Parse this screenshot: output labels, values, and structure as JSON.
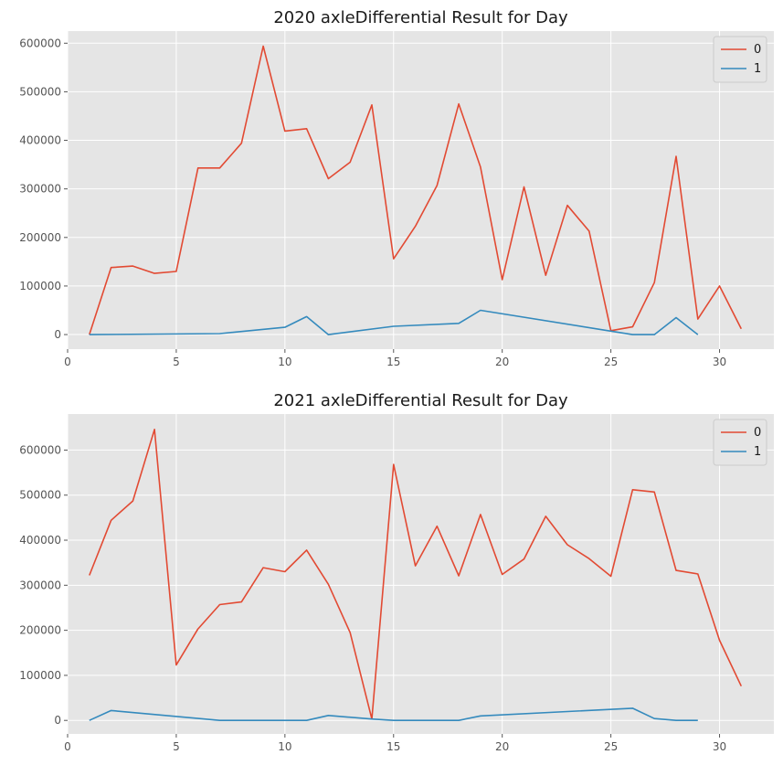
{
  "chart_data": [
    {
      "type": "line",
      "title": "2020 axleDifferential Result for Day",
      "xlabel": "",
      "ylabel": "",
      "xlim": [
        0,
        32.5
      ],
      "ylim": [
        -30000,
        625000
      ],
      "xticks": [
        0,
        5,
        10,
        15,
        20,
        25,
        30
      ],
      "yticks": [
        0,
        100000,
        200000,
        300000,
        400000,
        500000,
        600000
      ],
      "grid": true,
      "legend": "top-right",
      "series": [
        {
          "name": "0",
          "color": "#e24a33",
          "x": [
            1,
            2,
            3,
            4,
            5,
            6,
            7,
            8,
            9,
            10,
            11,
            12,
            13,
            14,
            15,
            16,
            17,
            18,
            19,
            20,
            21,
            22,
            23,
            24,
            25,
            26,
            27,
            28,
            29,
            30,
            31
          ],
          "y": [
            0,
            138000,
            141000,
            126000,
            130000,
            343000,
            343000,
            394000,
            594000,
            419000,
            424000,
            321000,
            355000,
            473000,
            156000,
            223000,
            307000,
            475000,
            345000,
            113000,
            304000,
            122000,
            266000,
            213000,
            8000,
            16000,
            107000,
            367000,
            32000,
            100000,
            12000
          ]
        },
        {
          "name": "1",
          "color": "#348abd",
          "x": [
            1,
            7,
            10,
            11,
            12,
            15,
            18,
            19,
            25,
            26,
            27,
            28,
            29
          ],
          "y": [
            0,
            2000,
            15000,
            37000,
            0,
            17000,
            23000,
            50000,
            7000,
            0,
            0,
            35000,
            0
          ]
        }
      ]
    },
    {
      "type": "line",
      "title": "2021 axleDifferential Result for Day",
      "xlabel": "",
      "ylabel": "",
      "xlim": [
        0,
        32.5
      ],
      "ylim": [
        -30000,
        680000
      ],
      "xticks": [
        0,
        5,
        10,
        15,
        20,
        25,
        30
      ],
      "yticks": [
        0,
        100000,
        200000,
        300000,
        400000,
        500000,
        600000
      ],
      "grid": true,
      "legend": "top-right",
      "series": [
        {
          "name": "0",
          "color": "#e24a33",
          "x": [
            1,
            2,
            3,
            4,
            5,
            6,
            7,
            8,
            9,
            10,
            11,
            12,
            13,
            14,
            15,
            16,
            17,
            18,
            19,
            20,
            21,
            22,
            23,
            24,
            25,
            26,
            27,
            28,
            29,
            30,
            31
          ],
          "y": [
            322000,
            444000,
            487000,
            646000,
            123000,
            203000,
            257000,
            263000,
            339000,
            330000,
            378000,
            302000,
            195000,
            3000,
            568000,
            343000,
            431000,
            321000,
            457000,
            324000,
            358000,
            453000,
            390000,
            359000,
            320000,
            512000,
            507000,
            333000,
            325000,
            178000,
            76000
          ]
        },
        {
          "name": "1",
          "color": "#348abd",
          "x": [
            1,
            2,
            7,
            11,
            12,
            14,
            15,
            18,
            19,
            26,
            27,
            28,
            29
          ],
          "y": [
            0,
            22000,
            0,
            0,
            11000,
            3000,
            0,
            0,
            10000,
            27000,
            4000,
            0,
            0
          ]
        }
      ]
    }
  ]
}
